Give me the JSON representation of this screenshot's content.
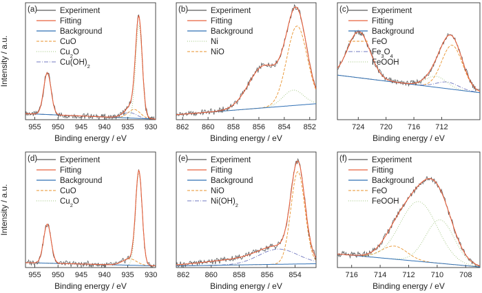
{
  "figure": {
    "ylabel": "Intensity / a.u.",
    "xlabel": "Binding energy / eV"
  },
  "colors": {
    "experiment": "#5a5a5a",
    "fitting": "#e8603c",
    "background": "#2e6fb5",
    "comp_orange": "#e8912a",
    "comp_green": "#9dc37b",
    "comp_blue": "#7078c0"
  },
  "chart_data": [
    {
      "panel": "(a)",
      "type": "line",
      "xlim": [
        957,
        929
      ],
      "xticks": [
        "955",
        "950",
        "945",
        "940",
        "935",
        "930"
      ],
      "xlabel": "Binding energy / eV",
      "ylabel": "Intensity / a.u.",
      "legend": [
        "Experiment",
        "Fitting",
        "Background",
        "CuO",
        "Cu2O",
        "Cu(OH)2"
      ],
      "legend_location": "top-left",
      "baseline": [
        [
          957,
          0.03
        ],
        [
          929,
          -0.02
        ]
      ],
      "peaks": [
        {
          "name": "CuO",
          "center": 933.6,
          "height": 0.08,
          "width": 1.3
        },
        {
          "name": "Cu2O",
          "center": 932.6,
          "height": 0.85,
          "width": 0.7
        },
        {
          "name": "Cu(OH)2",
          "center": 934.6,
          "height": 0.05,
          "width": 1.5
        },
        {
          "name": "satellite",
          "center": 952.3,
          "height": 0.38,
          "width": 0.8
        }
      ]
    },
    {
      "panel": "(b)",
      "type": "line",
      "xlim": [
        862.5,
        851.5
      ],
      "xticks": [
        "862",
        "860",
        "858",
        "856",
        "854",
        "852"
      ],
      "xlabel": "Binding energy / eV",
      "ylabel": "",
      "legend": [
        "Experiment",
        "Fitting",
        "Background",
        "Ni",
        "NiO"
      ],
      "legend_location": "top-left",
      "baseline": [
        [
          862.5,
          0.02
        ],
        [
          851.5,
          0.12
        ]
      ],
      "peaks": [
        {
          "name": "Ni",
          "center": 853.3,
          "height": 0.14,
          "width": 0.8
        },
        {
          "name": "NiO",
          "center": 853.0,
          "height": 0.72,
          "width": 0.8
        },
        {
          "name": "satellite",
          "center": 855.6,
          "height": 0.38,
          "width": 1.2
        }
      ]
    },
    {
      "panel": "(c)",
      "type": "line",
      "xlim": [
        727,
        706.5
      ],
      "xticks": [
        "724",
        "720",
        "716",
        "712"
      ],
      "xlabel": "Binding energy / eV",
      "ylabel": "",
      "legend": [
        "Experiment",
        "Fitting",
        "Background",
        "FeO",
        "Fe3O4",
        "FeOOH"
      ],
      "legend_location": "top-left",
      "baseline": [
        [
          727,
          0.38
        ],
        [
          706.5,
          0.22
        ]
      ],
      "peaks": [
        {
          "name": "FeO",
          "center": 710.5,
          "height": 0.4,
          "width": 1.5
        },
        {
          "name": "Fe3O4",
          "center": 711.2,
          "height": 0.06,
          "width": 1.6
        },
        {
          "name": "FeOOH",
          "center": 712.8,
          "height": 0.1,
          "width": 1.5
        },
        {
          "name": "satellite",
          "center": 723.9,
          "height": 0.42,
          "width": 1.6
        }
      ]
    },
    {
      "panel": "(d)",
      "type": "line",
      "xlim": [
        957,
        929
      ],
      "xticks": [
        "955",
        "950",
        "945",
        "940",
        "935",
        "930"
      ],
      "xlabel": "Binding energy / eV",
      "ylabel": "Intensity / a.u.",
      "legend": [
        "Experiment",
        "Fitting",
        "Background",
        "CuO",
        "Cu2O"
      ],
      "legend_location": "top-left",
      "baseline": [
        [
          957,
          0.02
        ],
        [
          929,
          -0.01
        ]
      ],
      "peaks": [
        {
          "name": "CuO",
          "center": 934.6,
          "height": 0.06,
          "width": 1.5
        },
        {
          "name": "Cu2O",
          "center": 932.6,
          "height": 0.85,
          "width": 0.7
        },
        {
          "name": "satellite",
          "center": 952.3,
          "height": 0.36,
          "width": 0.8
        }
      ]
    },
    {
      "panel": "(e)",
      "type": "line",
      "xlim": [
        862.5,
        852.5
      ],
      "xticks": [
        "862",
        "860",
        "858",
        "856",
        "854"
      ],
      "xlabel": "Binding energy / eV",
      "ylabel": "",
      "legend": [
        "Experiment",
        "Fitting",
        "Background",
        "NiO",
        "Ni(OH)2"
      ],
      "legend_location": "top-left",
      "baseline": [
        [
          862.5,
          -0.01
        ],
        [
          852.5,
          0.01
        ]
      ],
      "peaks": [
        {
          "name": "NiO",
          "center": 853.8,
          "height": 0.85,
          "width": 0.5
        },
        {
          "name": "Ni(OH)2",
          "center": 855.2,
          "height": 0.14,
          "width": 1.4
        },
        {
          "name": "satellite",
          "center": 858.0,
          "height": 0.05,
          "width": 2.5
        }
      ]
    },
    {
      "panel": "(f)",
      "type": "line",
      "xlim": [
        717,
        707
      ],
      "xticks": [
        "716",
        "714",
        "712",
        "710",
        "708"
      ],
      "xlabel": "Binding energy / eV",
      "ylabel": "",
      "legend": [
        "Experiment",
        "Fitting",
        "Background",
        "FeO",
        "FeOOH"
      ],
      "legend_location": "top-left",
      "baseline": [
        [
          717,
          0.1
        ],
        [
          707,
          -0.02
        ]
      ],
      "peaks": [
        {
          "name": "FeO",
          "center": 713.0,
          "height": 0.12,
          "width": 0.9
        },
        {
          "name": "FeOOH",
          "center": 711.3,
          "height": 0.55,
          "width": 1.3
        },
        {
          "name": "FeOOH-2",
          "center": 709.8,
          "height": 0.4,
          "width": 1.0
        }
      ]
    }
  ]
}
